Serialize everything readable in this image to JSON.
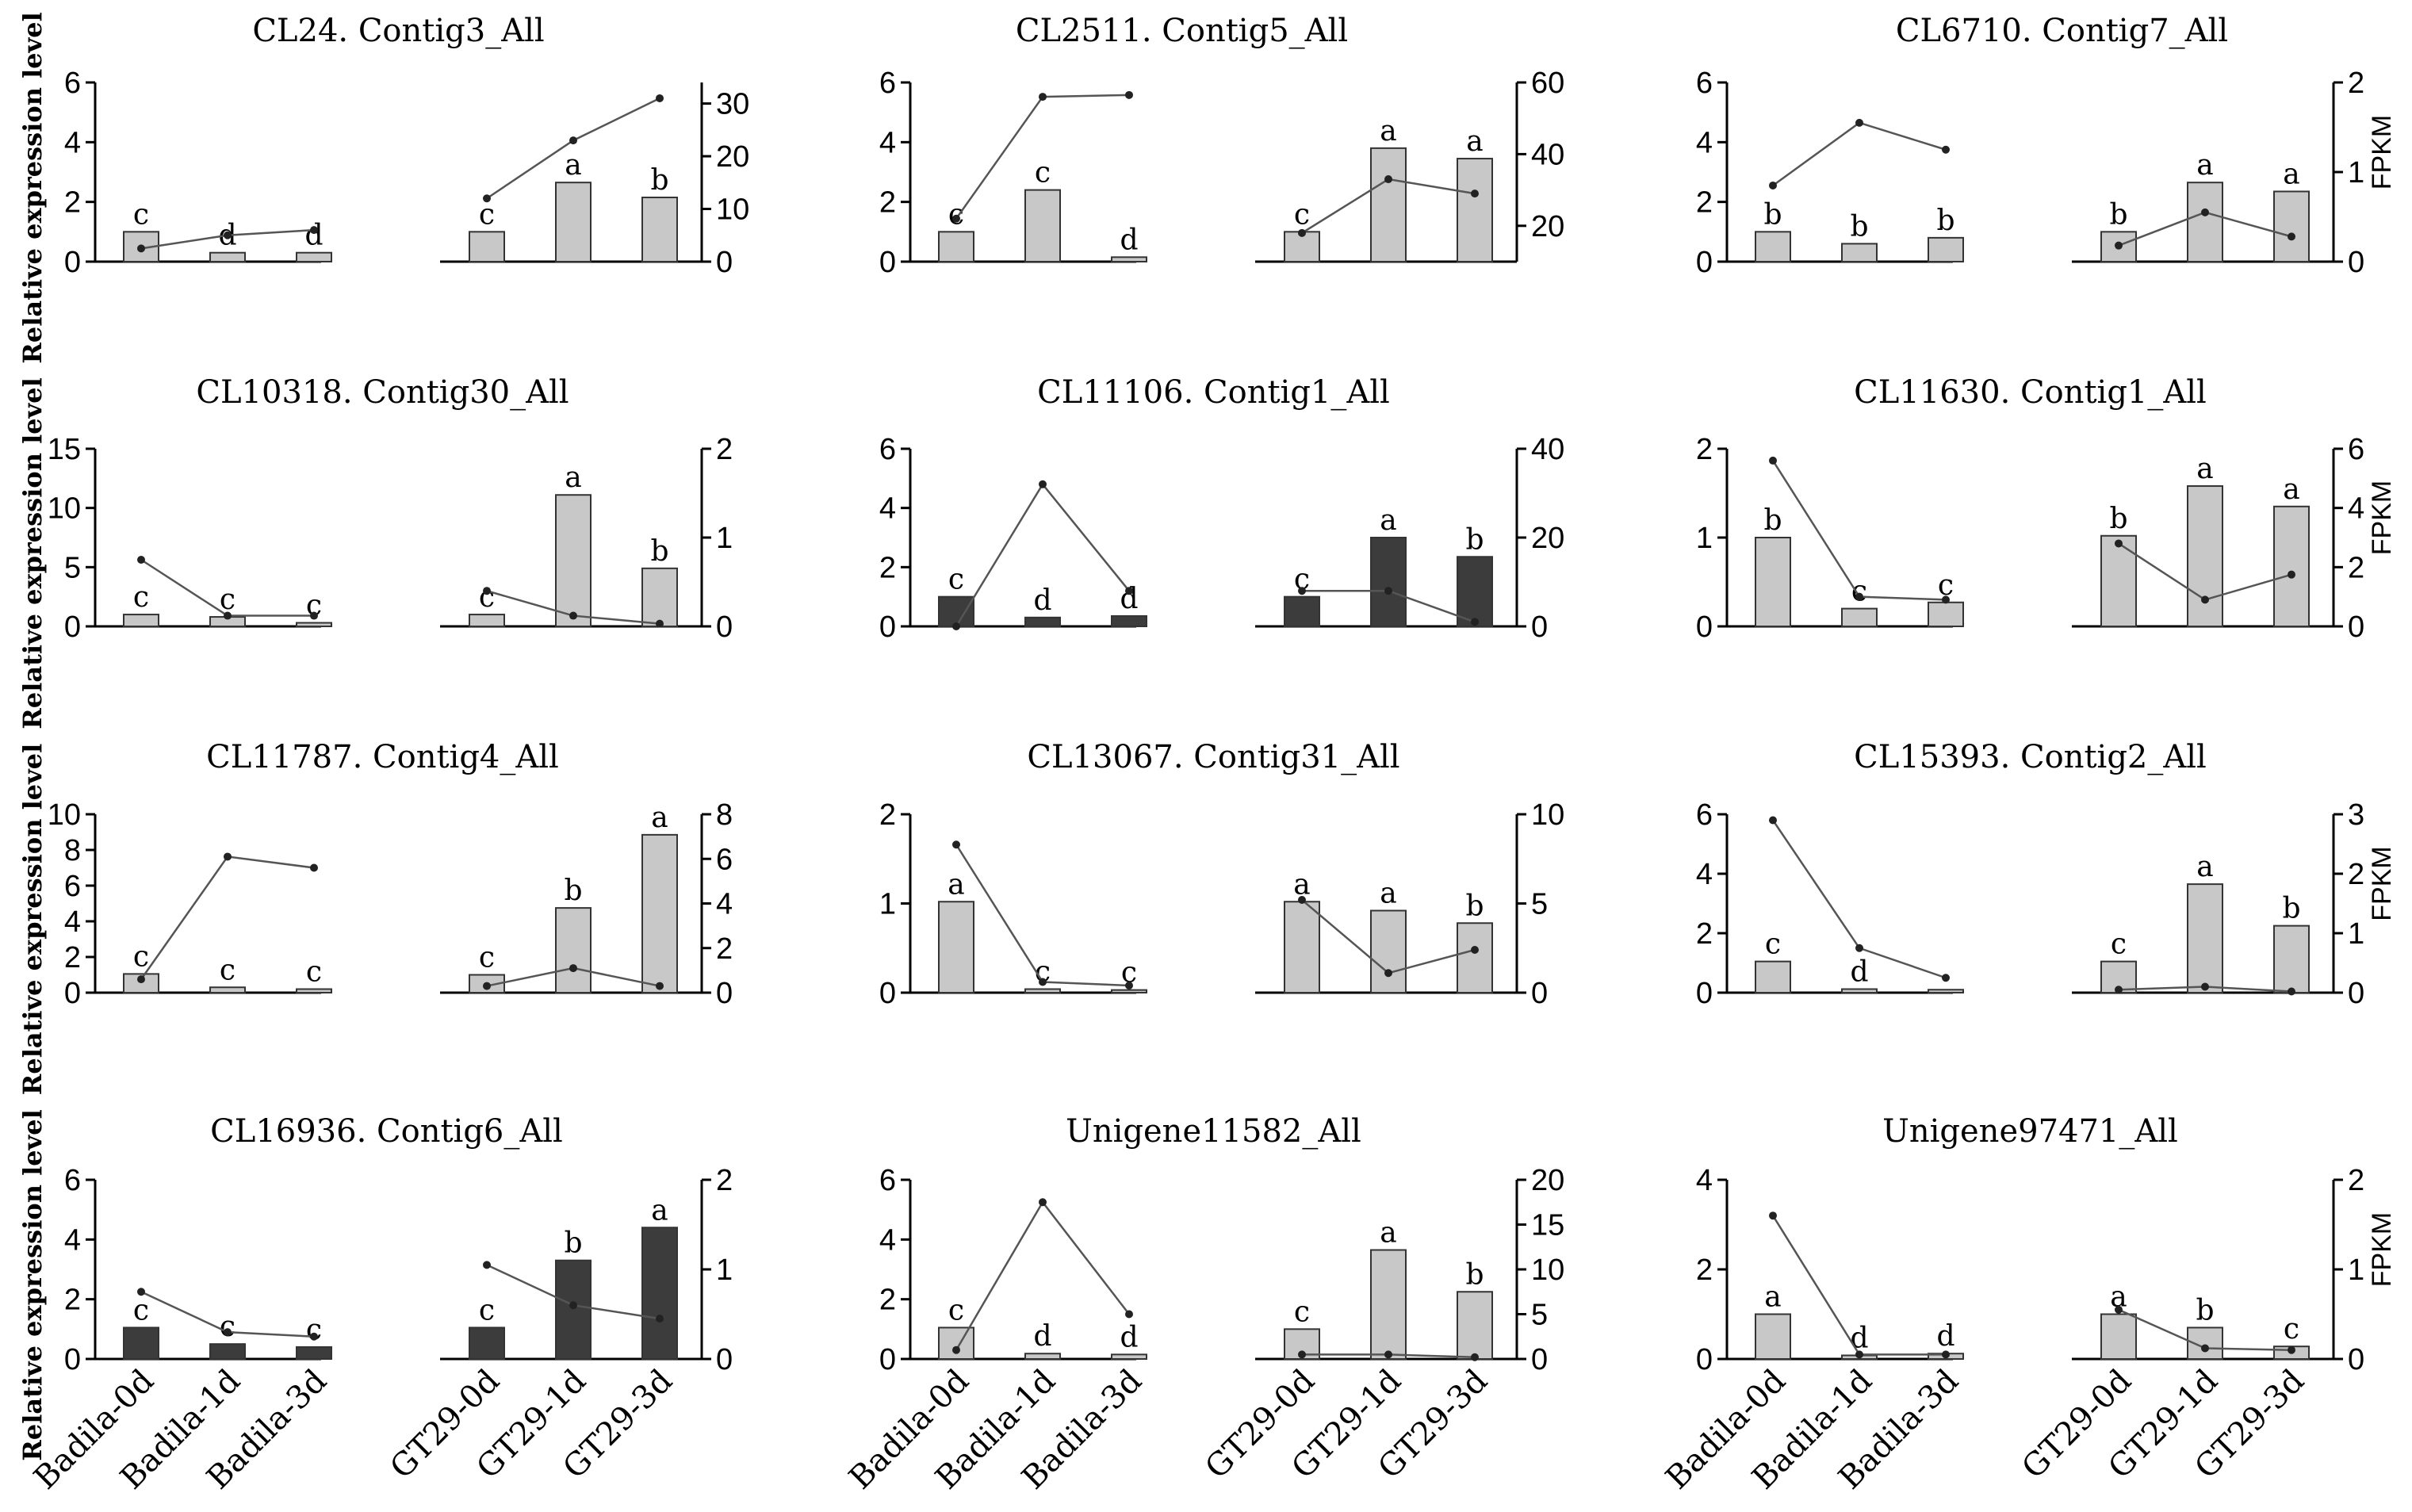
{
  "figure": {
    "y_label": "Relative expression level",
    "y2_label": "FPKM"
  },
  "colors": {
    "light_bar": "#c8c8c8",
    "dark_bar": "#3c3c3c",
    "line": "#555555"
  },
  "chart_data": [
    {
      "type": "bar+line",
      "title": "CL24. Contig3_All",
      "categories": [
        "Badila-0d",
        "Badila-1d",
        "Badila-3d",
        "GT29-0d",
        "GT29-1d",
        "GT29-3d"
      ],
      "values": [
        1.0,
        0.3,
        0.3,
        1.0,
        2.65,
        2.15
      ],
      "letters": [
        "c",
        "d",
        "d",
        "c",
        "a",
        "b"
      ],
      "fpkm": [
        2.5,
        5,
        6,
        12,
        23,
        31
      ],
      "ylim": [
        0,
        6
      ],
      "yticks": [
        0,
        2,
        4,
        6
      ],
      "y2lim": [
        0,
        34
      ],
      "y2ticks": [
        0,
        10,
        20,
        30
      ],
      "bar_shade": "light"
    },
    {
      "type": "bar+line",
      "title": "CL2511. Contig5_All",
      "categories": [
        "Badila-0d",
        "Badila-1d",
        "Badila-3d",
        "GT29-0d",
        "GT29-1d",
        "GT29-3d"
      ],
      "values": [
        1.0,
        2.4,
        0.15,
        1.0,
        3.8,
        3.45
      ],
      "letters": [
        "c",
        "c",
        "d",
        "c",
        "a",
        "a"
      ],
      "fpkm": [
        22,
        56,
        56.5,
        18,
        33,
        29
      ],
      "ylim": [
        0,
        6
      ],
      "yticks": [
        0,
        2,
        4,
        6
      ],
      "y2lim": [
        10,
        60
      ],
      "y2ticks": [
        20,
        40,
        60
      ],
      "bar_shade": "light"
    },
    {
      "type": "bar+line",
      "title": "CL6710. Contig7_All",
      "categories": [
        "Badila-0d",
        "Badila-1d",
        "Badila-3d",
        "GT29-0d",
        "GT29-1d",
        "GT29-3d"
      ],
      "values": [
        1.0,
        0.6,
        0.8,
        1.0,
        2.65,
        2.35
      ],
      "letters": [
        "b",
        "b",
        "b",
        "b",
        "a",
        "a"
      ],
      "fpkm": [
        0.85,
        1.55,
        1.25,
        0.18,
        0.55,
        0.28
      ],
      "ylim": [
        0,
        6
      ],
      "yticks": [
        0,
        2,
        4,
        6
      ],
      "y2lim": [
        0,
        2
      ],
      "y2ticks": [
        0,
        1,
        2
      ],
      "bar_shade": "light",
      "show_y2_label": true
    },
    {
      "type": "bar+line",
      "title": "CL10318. Contig30_All",
      "categories": [
        "Badila-0d",
        "Badila-1d",
        "Badila-3d",
        "GT29-0d",
        "GT29-1d",
        "GT29-3d"
      ],
      "values": [
        1.0,
        0.8,
        0.3,
        1.0,
        11.1,
        4.9
      ],
      "letters": [
        "c",
        "c",
        "c",
        "c",
        "a",
        "b"
      ],
      "fpkm": [
        0.75,
        0.12,
        0.12,
        0.4,
        0.12,
        0.03
      ],
      "ylim": [
        0,
        15
      ],
      "yticks": [
        0,
        5,
        10,
        15
      ],
      "y2lim": [
        0,
        2
      ],
      "y2ticks": [
        0,
        1,
        2
      ],
      "bar_shade": "light"
    },
    {
      "type": "bar+line",
      "title": "CL11106. Contig1_All",
      "categories": [
        "Badila-0d",
        "Badila-1d",
        "Badila-3d",
        "GT29-0d",
        "GT29-1d",
        "GT29-3d"
      ],
      "values": [
        1.0,
        0.3,
        0.35,
        1.0,
        3.0,
        2.35
      ],
      "letters": [
        "c",
        "d",
        "d",
        "c",
        "a",
        "b"
      ],
      "fpkm": [
        0,
        32,
        8,
        8,
        8,
        1
      ],
      "ylim": [
        0,
        6
      ],
      "yticks": [
        0,
        2,
        4,
        6
      ],
      "y2lim": [
        0,
        40
      ],
      "y2ticks": [
        0,
        20,
        40
      ],
      "bar_shade": "dark"
    },
    {
      "type": "bar+line",
      "title": "CL11630. Contig1_All",
      "categories": [
        "Badila-0d",
        "Badila-1d",
        "Badila-3d",
        "GT29-0d",
        "GT29-1d",
        "GT29-3d"
      ],
      "values": [
        1.0,
        0.2,
        0.27,
        1.02,
        1.58,
        1.35
      ],
      "letters": [
        "b",
        "c",
        "c",
        "b",
        "a",
        "a"
      ],
      "fpkm": [
        5.6,
        1.0,
        0.9,
        2.8,
        0.9,
        1.75
      ],
      "ylim": [
        0,
        2
      ],
      "yticks": [
        0,
        1,
        2
      ],
      "y2lim": [
        0,
        6
      ],
      "y2ticks": [
        0,
        2,
        4,
        6
      ],
      "bar_shade": "light",
      "show_y2_label": true
    },
    {
      "type": "bar+line",
      "title": "CL11787. Contig4_All",
      "categories": [
        "Badila-0d",
        "Badila-1d",
        "Badila-3d",
        "GT29-0d",
        "GT29-1d",
        "GT29-3d"
      ],
      "values": [
        1.05,
        0.3,
        0.2,
        1.0,
        4.75,
        8.85
      ],
      "letters": [
        "c",
        "c",
        "c",
        "c",
        "b",
        "a"
      ],
      "fpkm": [
        0.6,
        6.1,
        5.6,
        0.3,
        1.1,
        0.3
      ],
      "ylim": [
        0,
        10
      ],
      "yticks": [
        0,
        2,
        4,
        6,
        8,
        10
      ],
      "y2lim": [
        0,
        8
      ],
      "y2ticks": [
        0,
        2,
        4,
        6,
        8
      ],
      "bar_shade": "light"
    },
    {
      "type": "bar+line",
      "title": "CL13067. Contig31_All",
      "categories": [
        "Badila-0d",
        "Badila-1d",
        "Badila-3d",
        "GT29-0d",
        "GT29-1d",
        "GT29-3d"
      ],
      "values": [
        1.02,
        0.04,
        0.03,
        1.02,
        0.92,
        0.78
      ],
      "letters": [
        "a",
        "c",
        "c",
        "a",
        "a",
        "b"
      ],
      "fpkm": [
        8.3,
        0.6,
        0.4,
        5.2,
        1.1,
        2.4
      ],
      "ylim": [
        0,
        2
      ],
      "yticks": [
        0,
        1,
        2
      ],
      "y2lim": [
        0,
        10
      ],
      "y2ticks": [
        0,
        5,
        10
      ],
      "bar_shade": "light"
    },
    {
      "type": "bar+line",
      "title": "CL15393. Contig2_All",
      "categories": [
        "Badila-0d",
        "Badila-1d",
        "Badila-3d",
        "GT29-0d",
        "GT29-1d",
        "GT29-3d"
      ],
      "values": [
        1.05,
        0.12,
        0.1,
        1.05,
        3.65,
        2.25
      ],
      "letters": [
        "c",
        "d",
        "",
        "c",
        "a",
        "b"
      ],
      "fpkm": [
        2.9,
        0.75,
        0.25,
        0.05,
        0.1,
        0.02
      ],
      "ylim": [
        0,
        6
      ],
      "yticks": [
        0,
        2,
        4,
        6
      ],
      "y2lim": [
        0,
        3
      ],
      "y2ticks": [
        0,
        1,
        2,
        3
      ],
      "bar_shade": "light",
      "show_y2_label": true
    },
    {
      "type": "bar+line",
      "title": "CL16936. Contig6_All",
      "categories": [
        "Badila-0d",
        "Badila-1d",
        "Badila-3d",
        "GT29-0d",
        "GT29-1d",
        "GT29-3d"
      ],
      "values": [
        1.05,
        0.5,
        0.4,
        1.05,
        3.3,
        4.4
      ],
      "letters": [
        "c",
        "c",
        "c",
        "c",
        "b",
        "a"
      ],
      "fpkm": [
        0.75,
        0.3,
        0.25,
        1.05,
        0.6,
        0.45
      ],
      "ylim": [
        0,
        6
      ],
      "yticks": [
        0,
        2,
        4,
        6
      ],
      "y2lim": [
        0,
        2
      ],
      "y2ticks": [
        0,
        1,
        2
      ],
      "bar_shade": "dark"
    },
    {
      "type": "bar+line",
      "title": "Unigene11582_All",
      "categories": [
        "Badila-0d",
        "Badila-1d",
        "Badila-3d",
        "GT29-0d",
        "GT29-1d",
        "GT29-3d"
      ],
      "values": [
        1.05,
        0.18,
        0.15,
        1.0,
        3.65,
        2.25
      ],
      "letters": [
        "c",
        "d",
        "d",
        "c",
        "a",
        "b"
      ],
      "fpkm": [
        1,
        17.5,
        5,
        0.5,
        0.5,
        0.2
      ],
      "ylim": [
        0,
        6
      ],
      "yticks": [
        0,
        2,
        4,
        6
      ],
      "y2lim": [
        0,
        20
      ],
      "y2ticks": [
        0,
        5,
        10,
        15,
        20
      ],
      "bar_shade": "light"
    },
    {
      "type": "bar+line",
      "title": "Unigene97471_All",
      "categories": [
        "Badila-0d",
        "Badila-1d",
        "Badila-3d",
        "GT29-0d",
        "GT29-1d",
        "GT29-3d"
      ],
      "values": [
        1.0,
        0.08,
        0.12,
        1.0,
        0.7,
        0.28
      ],
      "letters": [
        "a",
        "d",
        "d",
        "a",
        "b",
        "c"
      ],
      "fpkm": [
        1.6,
        0.05,
        0.05,
        0.55,
        0.12,
        0.1
      ],
      "ylim": [
        0,
        4
      ],
      "yticks": [
        0,
        2,
        4
      ],
      "y2lim": [
        0,
        2
      ],
      "y2ticks": [
        0,
        1,
        2
      ],
      "bar_shade": "light",
      "show_y2_label": true
    }
  ]
}
